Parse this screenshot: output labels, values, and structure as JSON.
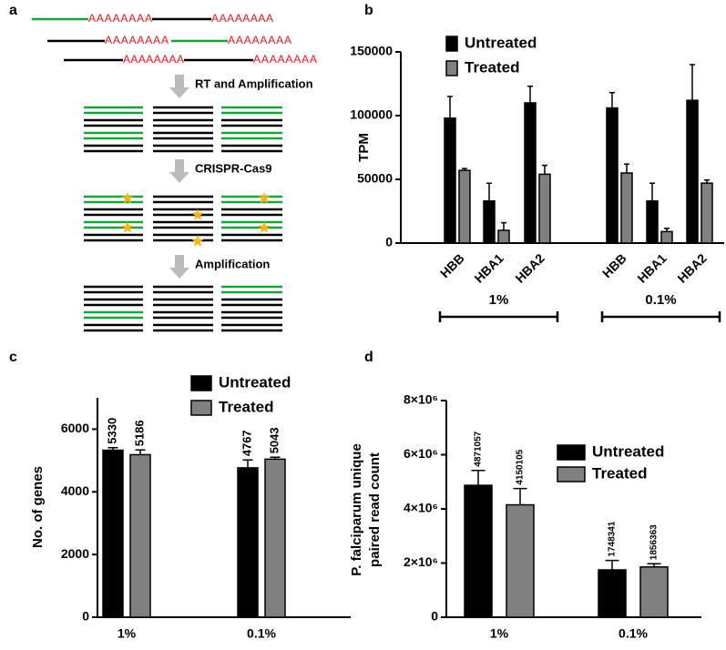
{
  "diagram": {
    "panel_label": "a",
    "polya": "AAAAAAAA",
    "steps": [
      "RT and Amplification",
      "CRISPR-Cas9",
      "Amplification"
    ]
  },
  "chart_data": [
    {
      "type": "bar",
      "panel_label": "b",
      "ylabel": "TPM",
      "categories": [
        "HBB",
        "HBA1",
        "HBA2",
        "HBB",
        "HBA1",
        "HBA2"
      ],
      "groups": [
        "1%",
        "0.1%"
      ],
      "series": [
        {
          "name": "Untreated",
          "color": "#000000",
          "values": [
            98000,
            33000,
            110000,
            106000,
            33000,
            112000
          ],
          "errors": [
            17000,
            14000,
            13000,
            12000,
            14000,
            28000
          ]
        },
        {
          "name": "Treated",
          "color": "#808080",
          "values": [
            57000,
            10000,
            54000,
            55000,
            9000,
            47000
          ],
          "errors": [
            1500,
            6000,
            7000,
            7000,
            2500,
            2500
          ]
        }
      ],
      "ylim": [
        0,
        150000
      ],
      "yticks": [
        0,
        50000,
        100000,
        150000
      ],
      "legend": "upper-left"
    },
    {
      "type": "bar",
      "panel_label": "c",
      "ylabel": "No. of genes",
      "categories": [
        "1%",
        "0.1%"
      ],
      "series": [
        {
          "name": "Untreated",
          "color": "#000000",
          "values": [
            5330,
            4767
          ],
          "errors": [
            80,
            250
          ]
        },
        {
          "name": "Treated",
          "color": "#808080",
          "values": [
            5186,
            5043
          ],
          "errors": [
            150,
            60
          ]
        }
      ],
      "ylim": [
        0,
        7000
      ],
      "yticks": [
        0,
        2000,
        4000,
        6000
      ],
      "data_labels": true,
      "legend": "upper-right"
    },
    {
      "type": "bar",
      "panel_label": "d",
      "ylabel": [
        "P. falciparum unique",
        "paired read count"
      ],
      "categories": [
        "1%",
        "0.1%"
      ],
      "series": [
        {
          "name": "Untreated",
          "color": "#000000",
          "values": [
            4871057,
            1748341
          ],
          "errors": [
            550000,
            350000
          ]
        },
        {
          "name": "Treated",
          "color": "#808080",
          "values": [
            4150105,
            1856363
          ],
          "errors": [
            600000,
            120000
          ]
        }
      ],
      "ylim": [
        0,
        8000000
      ],
      "yticks": [
        0,
        {
          "value": 2000000,
          "label": "2×10⁶"
        },
        {
          "value": 4000000,
          "label": "4×10⁶"
        },
        {
          "value": 6000000,
          "label": "6×10⁶"
        },
        {
          "value": 8000000,
          "label": "8×10⁶"
        }
      ],
      "data_labels": true,
      "legend": "center-right"
    }
  ]
}
